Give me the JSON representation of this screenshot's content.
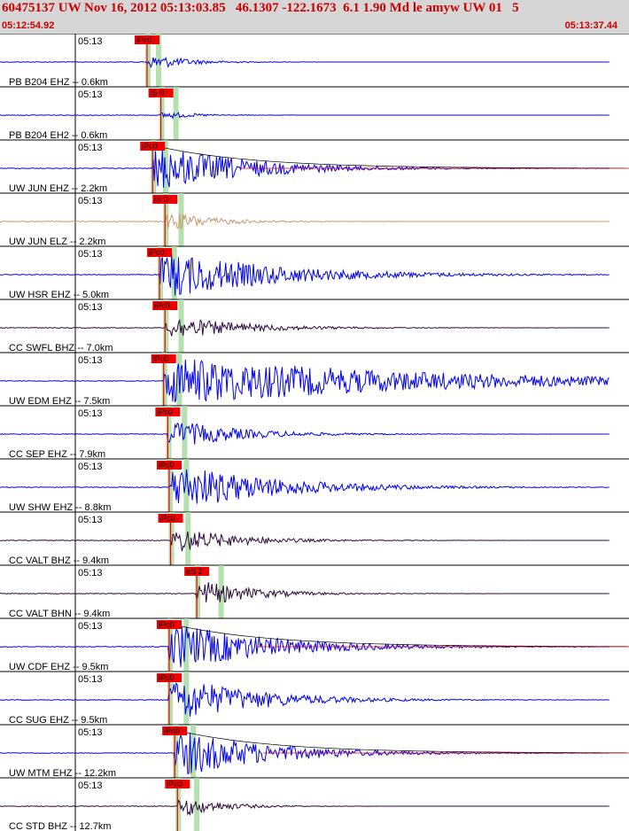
{
  "header": {
    "title": "60475137 UW Nov 16, 2012 05:13:03.85   46.1307 -122.1673  6.1 1.90 Md le amyw UW 01   5",
    "start_time": "05:12:54.92",
    "end_time": "05:13:37.44"
  },
  "chart_data": {
    "type": "line",
    "title": "60475137 UW Nov 16, 2012 05:13:03.85   46.1307 -122.1673  6.1 1.90 Md le amyw UW 01   5",
    "x_range": [
      "05:12:54.92",
      "05:13:37.44"
    ],
    "tick_label": "05:13",
    "colors": {
      "blue": "#0000ee",
      "tan": "#c8996a",
      "purple": "#2a0a3a",
      "pick": "#ee0000",
      "band": "#a8dca0"
    },
    "traces": [
      {
        "label": "PB B204 EHZ -- 0.6km",
        "pick": "iPc0",
        "pick_time_s": 0.0,
        "color": "blue",
        "amplitude": 0.35,
        "decay": 2.4,
        "has_coda": false
      },
      {
        "label": "PB B204 EH2 -- 0.6km",
        "pick": "iS 0",
        "pick_time_s": 1.0,
        "color": "blue",
        "amplitude": 0.18,
        "decay": 2.8,
        "has_coda": false
      },
      {
        "label": "UW JUN EHZ -- 2.2km",
        "pick": "iPc0",
        "pick_time_s": 0.4,
        "color": "blue",
        "amplitude": 1.0,
        "decay": 1.0,
        "has_coda": true
      },
      {
        "label": "UW JUN ELZ -- 2.2km",
        "pick": "iS 0",
        "pick_time_s": 1.3,
        "color": "tan",
        "amplitude": 0.45,
        "decay": 2.0,
        "has_coda": false
      },
      {
        "label": "UW HSR EHZ -- 5.0km",
        "pick": "iPc0",
        "pick_time_s": 0.9,
        "color": "blue",
        "amplitude": 1.0,
        "decay": 0.8,
        "has_coda": false
      },
      {
        "label": "CC SWFL BHZ -- 7.0km",
        "pick": "iPc0",
        "pick_time_s": 1.3,
        "color": "purple",
        "amplitude": 0.5,
        "decay": 1.2,
        "has_coda": false
      },
      {
        "label": "UW EDM EHZ -- 7.5km",
        "pick": "iPc0",
        "pick_time_s": 1.2,
        "color": "blue",
        "amplitude": 1.0,
        "decay": 0.35,
        "has_coda": false
      },
      {
        "label": "CC SEP EHZ -- 7.9km",
        "pick": "iPc0",
        "pick_time_s": 1.5,
        "color": "blue",
        "amplitude": 0.6,
        "decay": 1.3,
        "has_coda": false
      },
      {
        "label": "UW SHW EHZ -- 8.8km",
        "pick": "iPc0",
        "pick_time_s": 1.6,
        "color": "blue",
        "amplitude": 1.0,
        "decay": 0.9,
        "has_coda": false
      },
      {
        "label": "CC VALT BHZ -- 9.4km",
        "pick": "iPc0",
        "pick_time_s": 1.7,
        "color": "purple",
        "amplitude": 0.55,
        "decay": 1.4,
        "has_coda": false
      },
      {
        "label": "CC VALT BHN -- 9.4km",
        "pick": "eS 2",
        "pick_time_s": 3.6,
        "color": "purple",
        "amplitude": 0.55,
        "decay": 1.6,
        "has_coda": false
      },
      {
        "label": "UW CDF EHZ -- 9.5km",
        "pick": "iPc0",
        "pick_time_s": 1.6,
        "color": "blue",
        "amplitude": 1.0,
        "decay": 0.9,
        "has_coda": true
      },
      {
        "label": "CC SUG EHZ -- 9.5km",
        "pick": "iPc0",
        "pick_time_s": 1.6,
        "color": "blue",
        "amplitude": 1.0,
        "decay": 1.1,
        "has_coda": false
      },
      {
        "label": "UW MTM EHZ -- 12.2km",
        "pick": "iPc0",
        "pick_time_s": 2.0,
        "color": "blue",
        "amplitude": 1.0,
        "decay": 1.0,
        "has_coda": true
      },
      {
        "label": "CC STD BHZ -- 12.7km",
        "pick": "iPc0",
        "pick_time_s": 2.2,
        "color": "purple",
        "amplitude": 0.45,
        "decay": 2.2,
        "has_coda": false
      }
    ]
  }
}
